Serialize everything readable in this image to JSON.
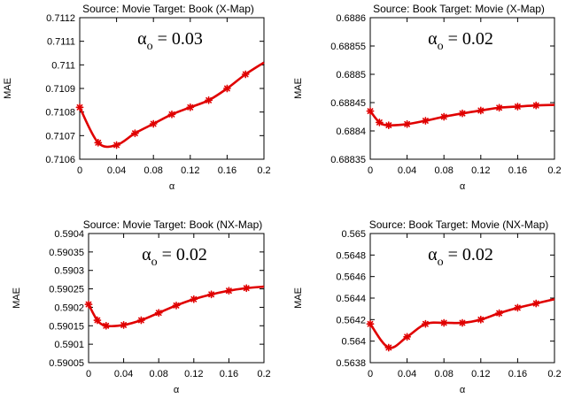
{
  "figure": {
    "line_color": "#e00000",
    "marker": "asterisk"
  },
  "chart_data": [
    {
      "type": "line",
      "title": "Source: Movie Target: Book (X-Map)",
      "xlabel": "α",
      "ylabel": "MAE",
      "annotation": {
        "symbol": "α",
        "subscript": "o",
        "text": " = 0.03"
      },
      "xlim": [
        0,
        0.2
      ],
      "ylim": [
        0.7106,
        0.7112
      ],
      "xticks": [
        0,
        0.04,
        0.08,
        0.12,
        0.16,
        0.2
      ],
      "xtick_labels": [
        "0",
        "0.04",
        "0.08",
        "0.12",
        "0.16",
        "0.2"
      ],
      "yticks": [
        0.7106,
        0.7107,
        0.7108,
        0.7109,
        0.711,
        0.7111,
        0.7112
      ],
      "ytick_labels": [
        "0.7106",
        "0.7107",
        "0.7108",
        "0.7109",
        "0.711",
        "0.7111",
        "0.7112"
      ],
      "grid": false,
      "series": [
        {
          "x": [
            0,
            0.02,
            0.04,
            0.06,
            0.08,
            0.1,
            0.12,
            0.14,
            0.16,
            0.18,
            0.2
          ],
          "values": [
            0.71082,
            0.71067,
            0.71066,
            0.71071,
            0.71075,
            0.71079,
            0.71082,
            0.71085,
            0.7109,
            0.71096,
            0.71101
          ],
          "marker_x": [
            0,
            0.02,
            0.04,
            0.06,
            0.08,
            0.1,
            0.12,
            0.14,
            0.16,
            0.18
          ]
        }
      ]
    },
    {
      "type": "line",
      "title": "Source: Book Target: Movie (X-Map)",
      "xlabel": "α",
      "ylabel": "MAE",
      "annotation": {
        "symbol": "α",
        "subscript": "o",
        "text": " = 0.02"
      },
      "xlim": [
        0,
        0.2
      ],
      "ylim": [
        0.68835,
        0.6886
      ],
      "xticks": [
        0,
        0.04,
        0.08,
        0.12,
        0.16,
        0.2
      ],
      "xtick_labels": [
        "0",
        "0.04",
        "0.08",
        "0.12",
        "0.16",
        "0.2"
      ],
      "yticks": [
        0.68835,
        0.6884,
        0.68845,
        0.6885,
        0.68855,
        0.6886
      ],
      "ytick_labels": [
        "0.68835",
        "0.6884",
        "0.68845",
        "0.6885",
        "0.68855",
        "0.6886"
      ],
      "grid": false,
      "series": [
        {
          "x": [
            0,
            0.01,
            0.02,
            0.04,
            0.06,
            0.08,
            0.1,
            0.12,
            0.14,
            0.16,
            0.18,
            0.2
          ],
          "values": [
            0.688435,
            0.688415,
            0.68841,
            0.688412,
            0.688418,
            0.688425,
            0.688431,
            0.688436,
            0.688441,
            0.688443,
            0.688445,
            0.688446
          ],
          "marker_x": [
            0,
            0.01,
            0.02,
            0.04,
            0.06,
            0.08,
            0.1,
            0.12,
            0.14,
            0.16,
            0.18
          ]
        }
      ]
    },
    {
      "type": "line",
      "title": "Source: Movie Target: Book (NX-Map)",
      "xlabel": "α",
      "ylabel": "MAE",
      "annotation": {
        "symbol": "α",
        "subscript": "o",
        "text": " = 0.02"
      },
      "xlim": [
        0,
        0.2
      ],
      "ylim": [
        0.59005,
        0.5904
      ],
      "xticks": [
        0,
        0.04,
        0.08,
        0.12,
        0.16,
        0.2
      ],
      "xtick_labels": [
        "0",
        "0.04",
        "0.08",
        "0.12",
        "0.16",
        "0.2"
      ],
      "yticks": [
        0.59005,
        0.5901,
        0.59015,
        0.5902,
        0.59025,
        0.5903,
        0.59035,
        0.5904
      ],
      "ytick_labels": [
        "0.59005",
        "0.5901",
        "0.59015",
        "0.5902",
        "0.59025",
        "0.5903",
        "0.59035",
        "0.5904"
      ],
      "grid": false,
      "series": [
        {
          "x": [
            0,
            0.01,
            0.02,
            0.04,
            0.06,
            0.08,
            0.1,
            0.12,
            0.14,
            0.16,
            0.18,
            0.2
          ],
          "values": [
            0.590208,
            0.590165,
            0.59015,
            0.590152,
            0.590165,
            0.590185,
            0.590205,
            0.590222,
            0.590235,
            0.590245,
            0.590252,
            0.590256
          ],
          "marker_x": [
            0,
            0.01,
            0.02,
            0.04,
            0.06,
            0.08,
            0.1,
            0.12,
            0.14,
            0.16,
            0.18
          ]
        }
      ]
    },
    {
      "type": "line",
      "title": "Source: Book Target: Movie (NX-Map)",
      "xlabel": "α",
      "ylabel": "MAE",
      "annotation": {
        "symbol": "α",
        "subscript": "o",
        "text": " = 0.02"
      },
      "xlim": [
        0,
        0.2
      ],
      "ylim": [
        0.5638,
        0.565
      ],
      "xticks": [
        0,
        0.04,
        0.08,
        0.12,
        0.16,
        0.2
      ],
      "xtick_labels": [
        "0",
        "0.04",
        "0.08",
        "0.12",
        "0.16",
        "0.2"
      ],
      "yticks": [
        0.5638,
        0.564,
        0.5642,
        0.5644,
        0.5646,
        0.5648,
        0.565
      ],
      "ytick_labels": [
        "0.5638",
        "0.564",
        "0.5642",
        "0.5644",
        "0.5646",
        "0.5648",
        "0.565"
      ],
      "grid": false,
      "series": [
        {
          "x": [
            0,
            0.02,
            0.04,
            0.06,
            0.08,
            0.1,
            0.12,
            0.14,
            0.16,
            0.18,
            0.2
          ],
          "values": [
            0.56416,
            0.56394,
            0.56404,
            0.56416,
            0.56417,
            0.56417,
            0.5642,
            0.56426,
            0.56431,
            0.56435,
            0.56439
          ],
          "marker_x": [
            0,
            0.02,
            0.04,
            0.06,
            0.08,
            0.1,
            0.12,
            0.14,
            0.16,
            0.18
          ]
        }
      ]
    }
  ]
}
